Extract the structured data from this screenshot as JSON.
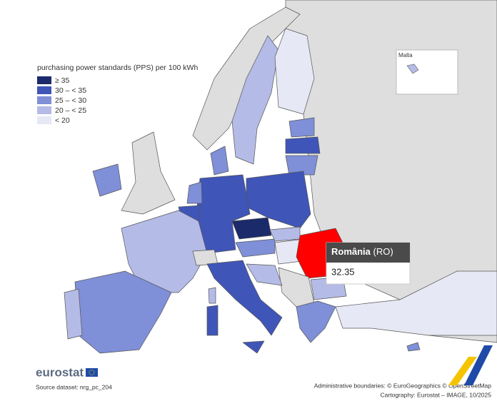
{
  "legend": {
    "title": "purchasing power standards (PPS) per 100 kWh",
    "items": [
      {
        "label": "≥ 35",
        "color": "#1b2a6b"
      },
      {
        "label": "30 – < 35",
        "color": "#3f55b8"
      },
      {
        "label": "25 – < 30",
        "color": "#7f8fd8"
      },
      {
        "label": "20 – < 25",
        "color": "#b4bbe6"
      },
      {
        "label": "< 20",
        "color": "#e6e8f5"
      }
    ]
  },
  "inset": {
    "label": "Malta"
  },
  "tooltip": {
    "country": "România",
    "code": "(RO)",
    "value": 32.35
  },
  "footer": {
    "logo": "eurostat",
    "source": "Source dataset: nrg_pc_204",
    "boundaries": "Administrative boundaries: © EuroGeographics © OpenStreetMap",
    "cartography": "Cartography: Eurostat – IMAGE, 10/2025"
  }
}
